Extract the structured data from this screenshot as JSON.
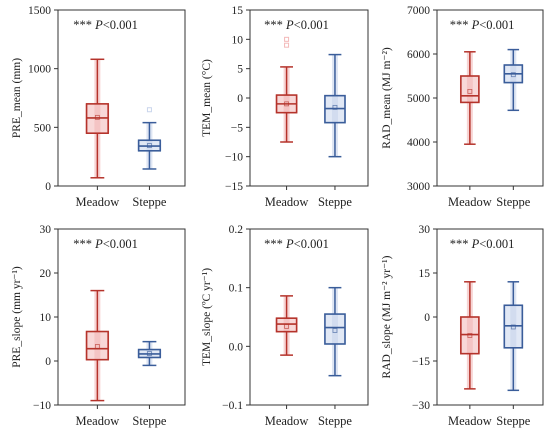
{
  "chart_data": [
    {
      "type": "boxplot",
      "panel": "a",
      "ylabel_main": "PRE_mean",
      "ylabel_sub": "",
      "ylabel_unit": "(mm)",
      "annotation_stars": "***",
      "annotation_p": "P",
      "annotation_value": "<0.001",
      "ylim": [
        0,
        1500
      ],
      "yticks": [
        0,
        500,
        1000,
        1500
      ],
      "ytick_labels": [
        "0",
        "500",
        "1000",
        "1500"
      ],
      "categories": [
        "Meadow",
        "Steppe"
      ],
      "boxes": [
        {
          "category": "Meadow",
          "whisker_low": 70,
          "q1": 450,
          "median": 580,
          "q3": 700,
          "whisker_high": 1080,
          "mean": 585,
          "outliers": []
        },
        {
          "category": "Steppe",
          "whisker_low": 145,
          "q1": 300,
          "median": 340,
          "q3": 390,
          "whisker_high": 540,
          "mean": 345,
          "outliers": [
            650
          ]
        }
      ]
    },
    {
      "type": "boxplot",
      "panel": "b",
      "ylabel_main": "TEM_mean",
      "ylabel_sub": "",
      "ylabel_unit": "(°C)",
      "annotation_stars": "***",
      "annotation_p": "P",
      "annotation_value": "<0.001",
      "ylim": [
        -15,
        15
      ],
      "yticks": [
        -15,
        -10,
        -5,
        0,
        5,
        10,
        15
      ],
      "ytick_labels": [
        "−15",
        "−10",
        "−5",
        "0",
        "5",
        "10",
        "15"
      ],
      "categories": [
        "Meadow",
        "Steppe"
      ],
      "boxes": [
        {
          "category": "Meadow",
          "whisker_low": -7.5,
          "q1": -2.5,
          "median": -1.0,
          "q3": 0.5,
          "whisker_high": 5.3,
          "mean": -1.0,
          "outliers": [
            9.0,
            10.0
          ]
        },
        {
          "category": "Steppe",
          "whisker_low": -10.0,
          "q1": -4.2,
          "median": -1.8,
          "q3": 0.4,
          "whisker_high": 7.4,
          "mean": -1.6,
          "outliers": []
        }
      ]
    },
    {
      "type": "boxplot",
      "panel": "c",
      "ylabel_main": "RAD_mean",
      "ylabel_sub": "",
      "ylabel_unit": "(MJ m⁻²)",
      "annotation_stars": "***",
      "annotation_p": "P",
      "annotation_value": "<0.001",
      "ylim": [
        3000,
        7000
      ],
      "yticks": [
        3000,
        4000,
        5000,
        6000,
        7000
      ],
      "ytick_labels": [
        "3000",
        "4000",
        "5000",
        "6000",
        "7000"
      ],
      "categories": [
        "Meadow",
        "Steppe"
      ],
      "boxes": [
        {
          "category": "Meadow",
          "whisker_low": 3950,
          "q1": 4900,
          "median": 5050,
          "q3": 5500,
          "whisker_high": 6050,
          "mean": 5150,
          "outliers": []
        },
        {
          "category": "Steppe",
          "whisker_low": 4720,
          "q1": 5350,
          "median": 5550,
          "q3": 5750,
          "whisker_high": 6100,
          "mean": 5530,
          "outliers": []
        }
      ]
    },
    {
      "type": "boxplot",
      "panel": "d",
      "ylabel_main": "PRE",
      "ylabel_sub": "_slope",
      "ylabel_unit": "(mm yr⁻¹)",
      "annotation_stars": "***",
      "annotation_p": "P",
      "annotation_value": "<0.001",
      "ylim": [
        -10,
        30
      ],
      "yticks": [
        -10,
        0,
        10,
        20,
        30
      ],
      "ytick_labels": [
        "−10",
        "0",
        "10",
        "20",
        "30"
      ],
      "categories": [
        "Meadow",
        "Steppe"
      ],
      "boxes": [
        {
          "category": "Meadow",
          "whisker_low": -9.0,
          "q1": 0.3,
          "median": 2.8,
          "q3": 6.7,
          "whisker_high": 16.0,
          "mean": 3.3,
          "outliers": []
        },
        {
          "category": "Steppe",
          "whisker_low": -1.0,
          "q1": 0.8,
          "median": 1.6,
          "q3": 2.6,
          "whisker_high": 4.4,
          "mean": 1.7,
          "outliers": []
        }
      ]
    },
    {
      "type": "boxplot",
      "panel": "e",
      "ylabel_main": "TEM",
      "ylabel_sub": "_slope",
      "ylabel_unit": "(ºC yr⁻¹)",
      "annotation_stars": "***",
      "annotation_p": "P",
      "annotation_value": "<0.001",
      "ylim": [
        -0.1,
        0.2
      ],
      "yticks": [
        -0.1,
        0.0,
        0.1,
        0.2
      ],
      "ytick_labels": [
        "−0.1",
        "0.0",
        "0.1",
        "0.2"
      ],
      "categories": [
        "Meadow",
        "Steppe"
      ],
      "boxes": [
        {
          "category": "Meadow",
          "whisker_low": -0.015,
          "q1": 0.025,
          "median": 0.038,
          "q3": 0.048,
          "whisker_high": 0.086,
          "mean": 0.034,
          "outliers": []
        },
        {
          "category": "Steppe",
          "whisker_low": -0.05,
          "q1": 0.004,
          "median": 0.032,
          "q3": 0.055,
          "whisker_high": 0.1,
          "mean": 0.027,
          "outliers": []
        }
      ]
    },
    {
      "type": "boxplot",
      "panel": "f",
      "ylabel_main": "RAD",
      "ylabel_sub": "_slope",
      "ylabel_unit": "(MJ m⁻² yr⁻¹)",
      "annotation_stars": "***",
      "annotation_p": "P",
      "annotation_value": "<0.001",
      "ylim": [
        -30,
        30
      ],
      "yticks": [
        -30,
        -15,
        0,
        15,
        30
      ],
      "ytick_labels": [
        "−30",
        "−15",
        "0",
        "15",
        "30"
      ],
      "categories": [
        "Meadow",
        "Steppe"
      ],
      "boxes": [
        {
          "category": "Meadow",
          "whisker_low": -24.5,
          "q1": -12.5,
          "median": -6.0,
          "q3": 0.0,
          "whisker_high": 12.0,
          "mean": -6.3,
          "outliers": []
        },
        {
          "category": "Steppe",
          "whisker_low": -25.0,
          "q1": -10.5,
          "median": -3.0,
          "q3": 4.0,
          "whisker_high": 12.0,
          "mean": -3.4,
          "outliers": []
        }
      ]
    }
  ],
  "colors": {
    "meadow": "#b5332b",
    "meadow_glow": "#f3b8b8",
    "steppe": "#3a5d9a",
    "steppe_glow": "#c9d5ec",
    "axis": "#333333"
  }
}
